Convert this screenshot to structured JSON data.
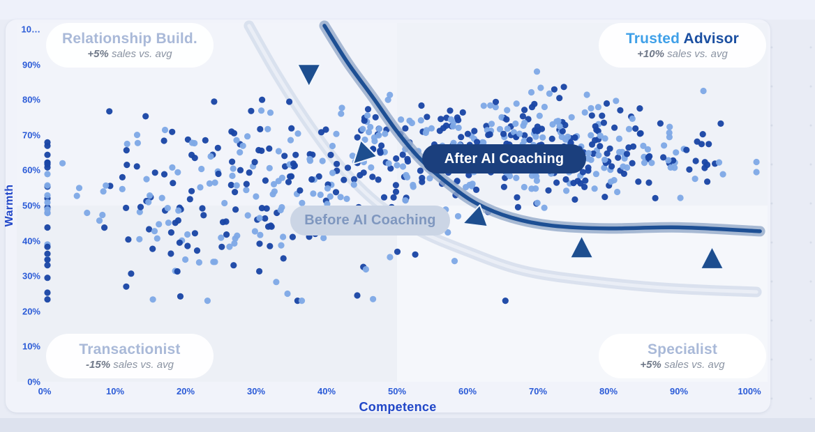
{
  "page": {
    "background": "#e9ecf5",
    "top_strip_color": "#eef1fa",
    "bottom_strip_color": "#dde2ee",
    "card_background": "#f1f3fa"
  },
  "axes": {
    "x_title": "Competence",
    "y_title": "Warmth",
    "tick_color": "#2b5bd7",
    "title_color": "#2147c8"
  },
  "chart_data": {
    "type": "scatter",
    "xlabel": "Competence",
    "ylabel": "Warmth",
    "xlim": [
      0,
      100
    ],
    "ylim": [
      0,
      100
    ],
    "grid": false,
    "legend_position": "none",
    "x_ticks": [
      "0%",
      "10%",
      "20%",
      "30%",
      "40%",
      "50%",
      "60%",
      "70%",
      "80%",
      "90%",
      "100%"
    ],
    "y_ticks": [
      "0%",
      "10%",
      "20%",
      "30%",
      "40%",
      "50%",
      "60%",
      "70%",
      "80%",
      "90%",
      "10…"
    ],
    "quadrant_split": {
      "x": 50,
      "y": 50
    },
    "quadrant_fills": {
      "tl": "#f2f4fa",
      "tr": "#eff2f8",
      "bl": "#edf0f6",
      "br": "#f5f7fb"
    },
    "point_style": {
      "radius": 4.6,
      "dark_color": "#1a46a6",
      "light_color": "#7fa9e6",
      "dark_ratio": 0.52,
      "opacity": 0.96,
      "seed": 42
    },
    "scatter_clusters": [
      {
        "name": "before-cloud",
        "count": 255,
        "mean": [
          30,
          52
        ],
        "std": [
          13.5,
          12.5
        ],
        "y_clip": [
          23,
          80
        ]
      },
      {
        "name": "after-cloud",
        "count": 430,
        "mean": [
          67,
          66
        ],
        "std": [
          13.5,
          7.5
        ],
        "y_clip": [
          40,
          88
        ]
      }
    ],
    "edge_column": {
      "x": 0.4,
      "count": 24,
      "y_range": [
        21,
        70
      ]
    },
    "curves": [
      {
        "name": "Before AI Coaching",
        "halo": "#d5ddeb",
        "halo_width": 15,
        "halo_opacity": 0.85,
        "core": "#eaeef6",
        "core_width": 5,
        "points": [
          [
            29,
            101
          ],
          [
            33,
            87
          ],
          [
            37.5,
            73
          ],
          [
            42,
            61
          ],
          [
            47,
            51
          ],
          [
            53,
            43
          ],
          [
            60,
            37
          ],
          [
            68,
            31.5
          ],
          [
            78,
            28.5
          ],
          [
            89,
            26.5
          ],
          [
            101,
            25.5
          ]
        ]
      },
      {
        "name": "After AI Coaching",
        "halo": "#93a9c9",
        "halo_width": 15,
        "halo_opacity": 0.8,
        "core": "#1d4f94",
        "core_width": 5.5,
        "points": [
          [
            39.7,
            101
          ],
          [
            43,
            90.5
          ],
          [
            46.6,
            80.6
          ],
          [
            50,
            71
          ],
          [
            53.4,
            63
          ],
          [
            57.4,
            56
          ],
          [
            61.3,
            50.6
          ],
          [
            66.2,
            46.6
          ],
          [
            72,
            44.3
          ],
          [
            80,
            43.5
          ],
          [
            90,
            43.8
          ],
          [
            101.5,
            42.7
          ]
        ]
      }
    ],
    "arrow_style": {
      "fill": "#1d4e8f",
      "stroke": "#f2f6fc",
      "stroke_width": 2
    },
    "arrows": [
      {
        "x": 37.5,
        "y": 87.5,
        "rot": 180
      },
      {
        "x": 45.1,
        "y": 64.4,
        "rot": 225
      },
      {
        "x": 61.1,
        "y": 46.2,
        "rot": 250
      },
      {
        "x": 76.2,
        "y": 37.7,
        "rot": 0
      },
      {
        "x": 94.7,
        "y": 34.6,
        "rot": 0
      }
    ]
  },
  "annotations": {
    "after_pill": {
      "label": "After AI Coaching",
      "bg": "#1b3f7d",
      "text_color": "#ffffff"
    },
    "before_pill": {
      "label": "Before AI Coaching",
      "bg": "#cbd5e5",
      "text_color": "#7f97bf"
    }
  },
  "quadrants": [
    {
      "title": "Relationship Build.",
      "stat_bold": "+5%",
      "stat_rest": " sales vs. avg"
    },
    {
      "title_part1": "Trusted ",
      "title_part2": "Advisor",
      "stat_bold": "+10%",
      "stat_rest": " sales vs. avg"
    },
    {
      "title": "Transactionist",
      "stat_bold": "-15%",
      "stat_rest": " sales vs. avg"
    },
    {
      "title": "Specialist",
      "stat_bold": "+5%",
      "stat_rest": " sales vs. avg"
    }
  ],
  "quadrant_style": {
    "title_color": "#a9b9d8",
    "trusted_color_1": "#3fa0e8",
    "trusted_color_2": "#1b4fa1",
    "stat_bold_color": "#6f7888",
    "stat_color": "#8a93a2",
    "bg": "#ffffff"
  }
}
